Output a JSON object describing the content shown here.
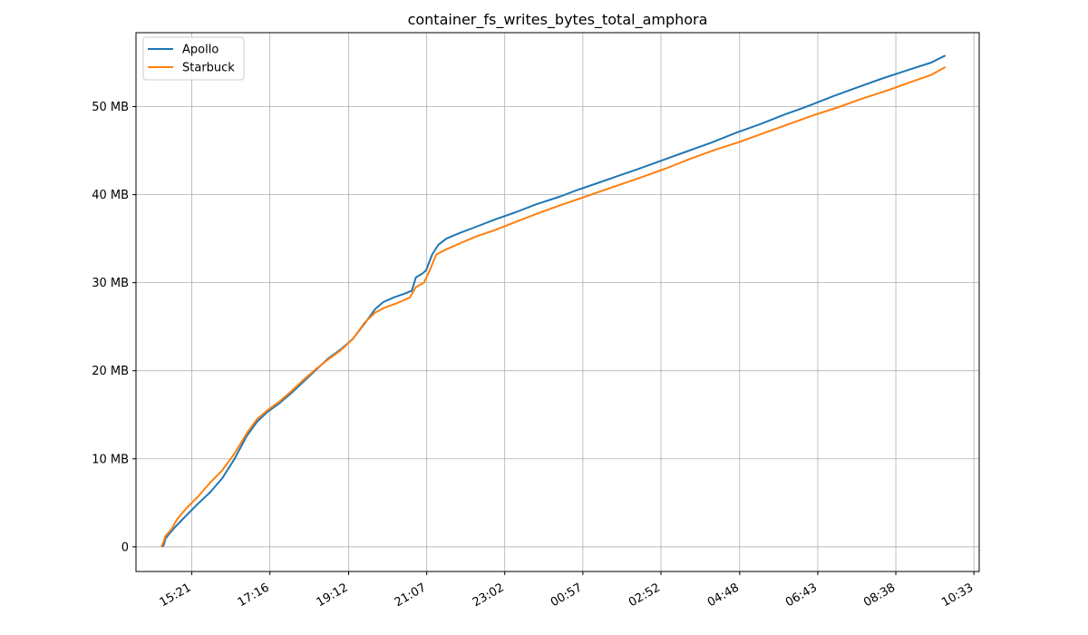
{
  "chart_data": {
    "type": "line",
    "title": "container_fs_writes_bytes_total_amphora",
    "xlabel": "",
    "ylabel": "",
    "x_tick_labels": [
      "15:21",
      "17:16",
      "19:12",
      "21:07",
      "23:02",
      "00:57",
      "02:52",
      "04:48",
      "06:43",
      "08:38",
      "10:33"
    ],
    "x_tick_hours": [
      15.35,
      17.267,
      19.2,
      21.117,
      23.033,
      24.95,
      26.867,
      28.8,
      30.717,
      32.633,
      34.55
    ],
    "xlim_hours": [
      13.98,
      34.68
    ],
    "y_ticks": [
      0,
      10,
      20,
      30,
      40,
      50
    ],
    "y_tick_labels": [
      "0",
      "10 MB",
      "20 MB",
      "30 MB",
      "40 MB",
      "50 MB"
    ],
    "ylim": [
      -2.8,
      58.4
    ],
    "grid": true,
    "legend_position": "top-left",
    "series": [
      {
        "name": "Apollo",
        "color": "#1f77b4",
        "points": [
          [
            14.63,
            0
          ],
          [
            14.67,
            0.3
          ],
          [
            14.7,
            0.9
          ],
          [
            14.8,
            1.5
          ],
          [
            14.95,
            2.3
          ],
          [
            15.2,
            3.5
          ],
          [
            15.5,
            4.9
          ],
          [
            15.8,
            6.2
          ],
          [
            16.1,
            7.8
          ],
          [
            16.4,
            10.0
          ],
          [
            16.7,
            12.6
          ],
          [
            16.95,
            14.2
          ],
          [
            17.2,
            15.3
          ],
          [
            17.5,
            16.3
          ],
          [
            17.8,
            17.5
          ],
          [
            18.1,
            18.8
          ],
          [
            18.4,
            20.1
          ],
          [
            18.7,
            21.4
          ],
          [
            19.0,
            22.4
          ],
          [
            19.3,
            23.6
          ],
          [
            19.6,
            25.4
          ],
          [
            19.85,
            27.0
          ],
          [
            20.05,
            27.8
          ],
          [
            20.3,
            28.3
          ],
          [
            20.6,
            28.8
          ],
          [
            20.75,
            29.1
          ],
          [
            20.85,
            30.6
          ],
          [
            21.0,
            31.0
          ],
          [
            21.1,
            31.4
          ],
          [
            21.25,
            33.2
          ],
          [
            21.4,
            34.3
          ],
          [
            21.6,
            35.0
          ],
          [
            21.9,
            35.6
          ],
          [
            22.3,
            36.3
          ],
          [
            22.8,
            37.2
          ],
          [
            23.3,
            38.0
          ],
          [
            23.8,
            38.9
          ],
          [
            24.4,
            39.8
          ],
          [
            24.8,
            40.5
          ],
          [
            25.3,
            41.3
          ],
          [
            25.8,
            42.1
          ],
          [
            26.3,
            42.9
          ],
          [
            26.9,
            43.9
          ],
          [
            27.5,
            44.9
          ],
          [
            28.1,
            45.9
          ],
          [
            28.7,
            47.0
          ],
          [
            29.3,
            48.0
          ],
          [
            29.9,
            49.1
          ],
          [
            30.5,
            50.1
          ],
          [
            31.1,
            51.2
          ],
          [
            31.7,
            52.2
          ],
          [
            32.3,
            53.2
          ],
          [
            32.9,
            54.1
          ],
          [
            33.5,
            55.0
          ],
          [
            33.85,
            55.8
          ]
        ]
      },
      {
        "name": "Starbuck",
        "color": "#ff7f0e",
        "points": [
          [
            14.6,
            0
          ],
          [
            14.65,
            0.5
          ],
          [
            14.7,
            1.2
          ],
          [
            14.85,
            2.0
          ],
          [
            15.0,
            3.2
          ],
          [
            15.2,
            4.3
          ],
          [
            15.5,
            5.7
          ],
          [
            15.8,
            7.3
          ],
          [
            16.1,
            8.7
          ],
          [
            16.4,
            10.6
          ],
          [
            16.7,
            12.9
          ],
          [
            16.95,
            14.5
          ],
          [
            17.2,
            15.5
          ],
          [
            17.5,
            16.5
          ],
          [
            17.8,
            17.7
          ],
          [
            18.1,
            19.0
          ],
          [
            18.4,
            20.2
          ],
          [
            18.7,
            21.3
          ],
          [
            19.0,
            22.3
          ],
          [
            19.3,
            23.6
          ],
          [
            19.6,
            25.5
          ],
          [
            19.85,
            26.6
          ],
          [
            20.1,
            27.2
          ],
          [
            20.4,
            27.7
          ],
          [
            20.7,
            28.3
          ],
          [
            20.85,
            29.5
          ],
          [
            21.05,
            30.0
          ],
          [
            21.2,
            31.5
          ],
          [
            21.35,
            33.2
          ],
          [
            21.6,
            33.8
          ],
          [
            21.9,
            34.4
          ],
          [
            22.3,
            35.2
          ],
          [
            22.8,
            36.0
          ],
          [
            23.3,
            36.9
          ],
          [
            23.8,
            37.8
          ],
          [
            24.4,
            38.8
          ],
          [
            24.9,
            39.6
          ],
          [
            25.4,
            40.4
          ],
          [
            25.9,
            41.2
          ],
          [
            26.4,
            42.0
          ],
          [
            27.0,
            43.0
          ],
          [
            27.6,
            44.1
          ],
          [
            28.2,
            45.1
          ],
          [
            28.8,
            46.0
          ],
          [
            29.4,
            47.0
          ],
          [
            30.0,
            48.0
          ],
          [
            30.6,
            49.0
          ],
          [
            31.2,
            49.9
          ],
          [
            31.8,
            50.9
          ],
          [
            32.4,
            51.8
          ],
          [
            33.0,
            52.8
          ],
          [
            33.5,
            53.6
          ],
          [
            33.85,
            54.5
          ]
        ]
      }
    ]
  }
}
